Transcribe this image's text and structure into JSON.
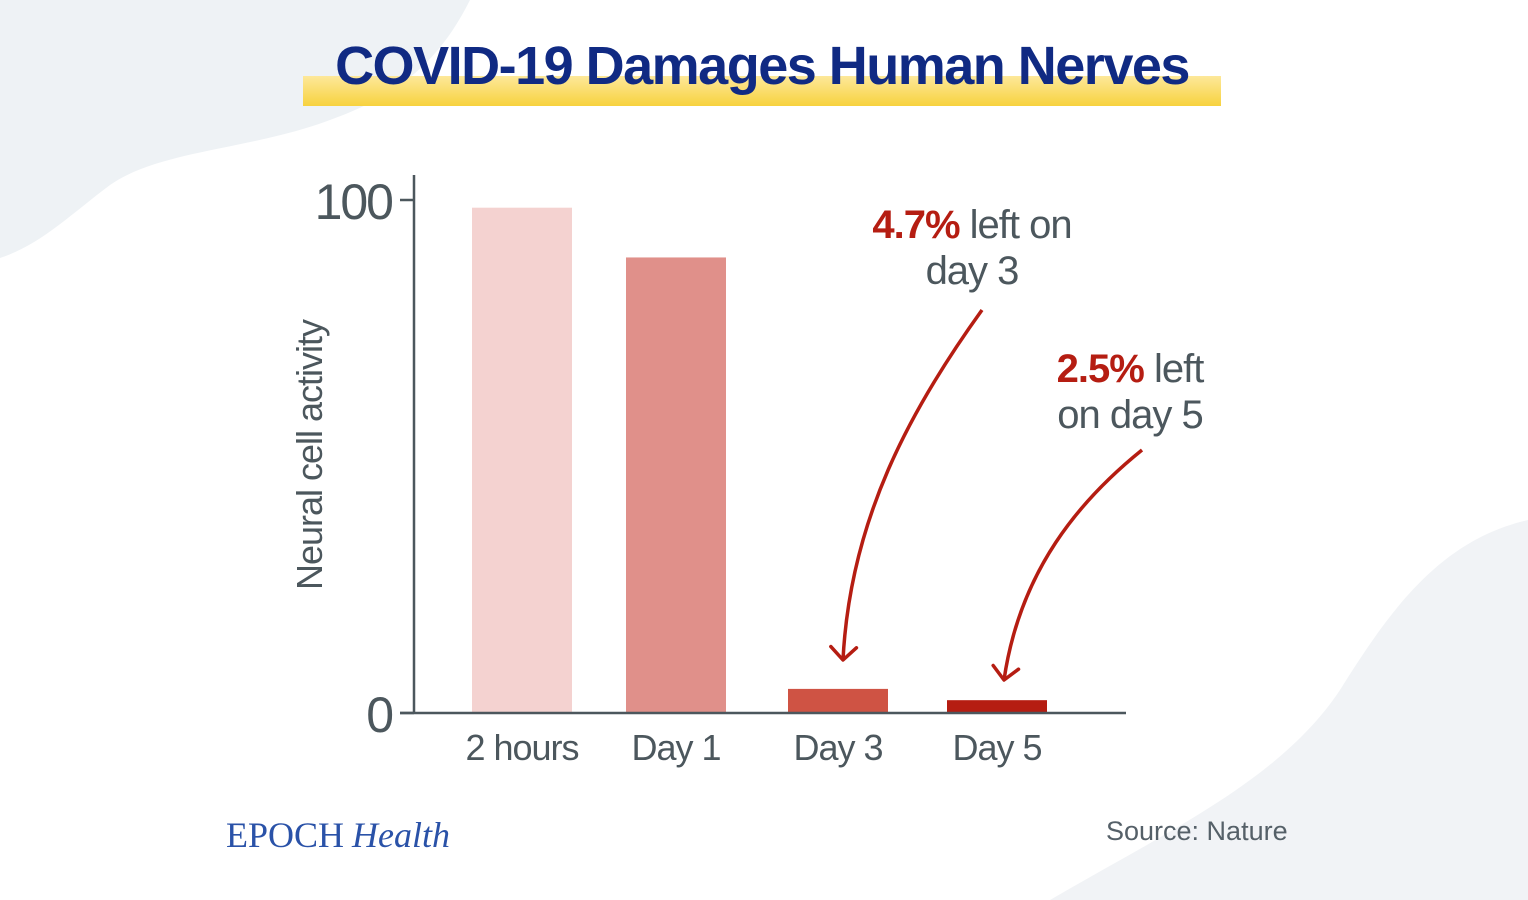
{
  "title": "COVID-19 Damages Human Nerves",
  "brand": {
    "name": "EPOCH",
    "suffix": "Health"
  },
  "source": "Source: Nature",
  "colors": {
    "title_text": "#102a83",
    "title_highlight": "#f7d23e",
    "axis": "#4c575d",
    "accent_red": "#b51d12",
    "bar_colors": [
      "#f4d2d0",
      "#e0908a",
      "#cf5344",
      "#b51d12"
    ]
  },
  "annotations": [
    {
      "pct": "4.7%",
      "line1": " left on",
      "line2": "day 3",
      "target_category": "Day 3"
    },
    {
      "pct": "2.5%",
      "line1": " left",
      "line2": "on day 5",
      "target_category": "Day 5"
    }
  ],
  "chart_data": {
    "type": "bar",
    "title": "COVID-19 Damages Human Nerves",
    "categories": [
      "2 hours",
      "Day 1",
      "Day 3",
      "Day 5"
    ],
    "values": [
      98.5,
      88.8,
      4.7,
      2.5
    ],
    "ylabel": "Neural cell activity",
    "xlabel": "",
    "ylim": [
      0,
      100
    ],
    "yticks": [
      0,
      100
    ],
    "grid": false,
    "legend": "none"
  }
}
